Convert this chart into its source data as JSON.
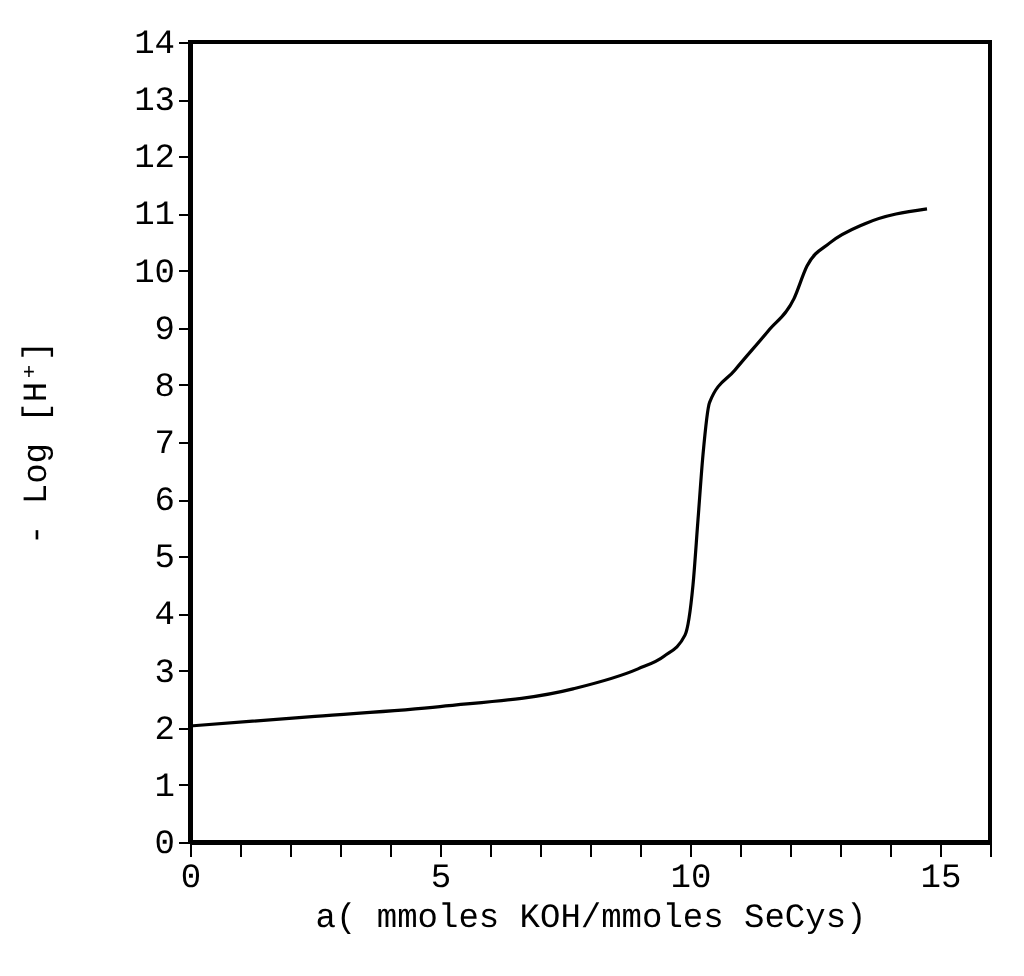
{
  "chart_data": {
    "type": "line",
    "xlabel": "a( mmoles KOH/mmoles SeCys)",
    "ylabel": "- Log [H⁺]",
    "x": [
      0,
      2.5,
      5,
      7.66,
      8.96,
      9.48,
      9.9,
      10.06,
      10.16,
      10.26,
      10.39,
      10.9,
      11.56,
      12.08,
      12.34,
      12.79,
      13.5,
      14.74
    ],
    "series": [
      {
        "color": "#000000",
        "values": [
          2.03,
          2.2,
          2.37,
          2.68,
          3.03,
          3.25,
          3.62,
          4.5,
          5.64,
          6.78,
          7.69,
          8.26,
          8.94,
          9.51,
          10.08,
          10.48,
          10.82,
          11.08
        ]
      }
    ],
    "xlim": [
      0,
      16
    ],
    "ylim": [
      0,
      14
    ],
    "xticks": [
      0,
      {
        "value": 1,
        "label": null
      },
      {
        "value": 2,
        "label": null
      },
      {
        "value": 3,
        "label": null
      },
      {
        "value": 4,
        "label": null
      },
      5,
      {
        "value": 6,
        "label": null
      },
      {
        "value": 7,
        "label": null
      },
      {
        "value": 8,
        "label": null
      },
      {
        "value": 9,
        "label": null
      },
      10,
      {
        "value": 11,
        "label": null
      },
      {
        "value": 12,
        "label": null
      },
      {
        "value": 13,
        "label": null
      },
      {
        "value": 14,
        "label": null
      },
      15,
      {
        "value": 16,
        "label": null
      }
    ],
    "yticks": [
      0,
      1,
      2,
      3,
      4,
      5,
      6,
      7,
      8,
      9,
      10,
      11,
      12,
      13,
      14
    ],
    "grid": false,
    "marker": "none",
    "line_style": "solid"
  }
}
